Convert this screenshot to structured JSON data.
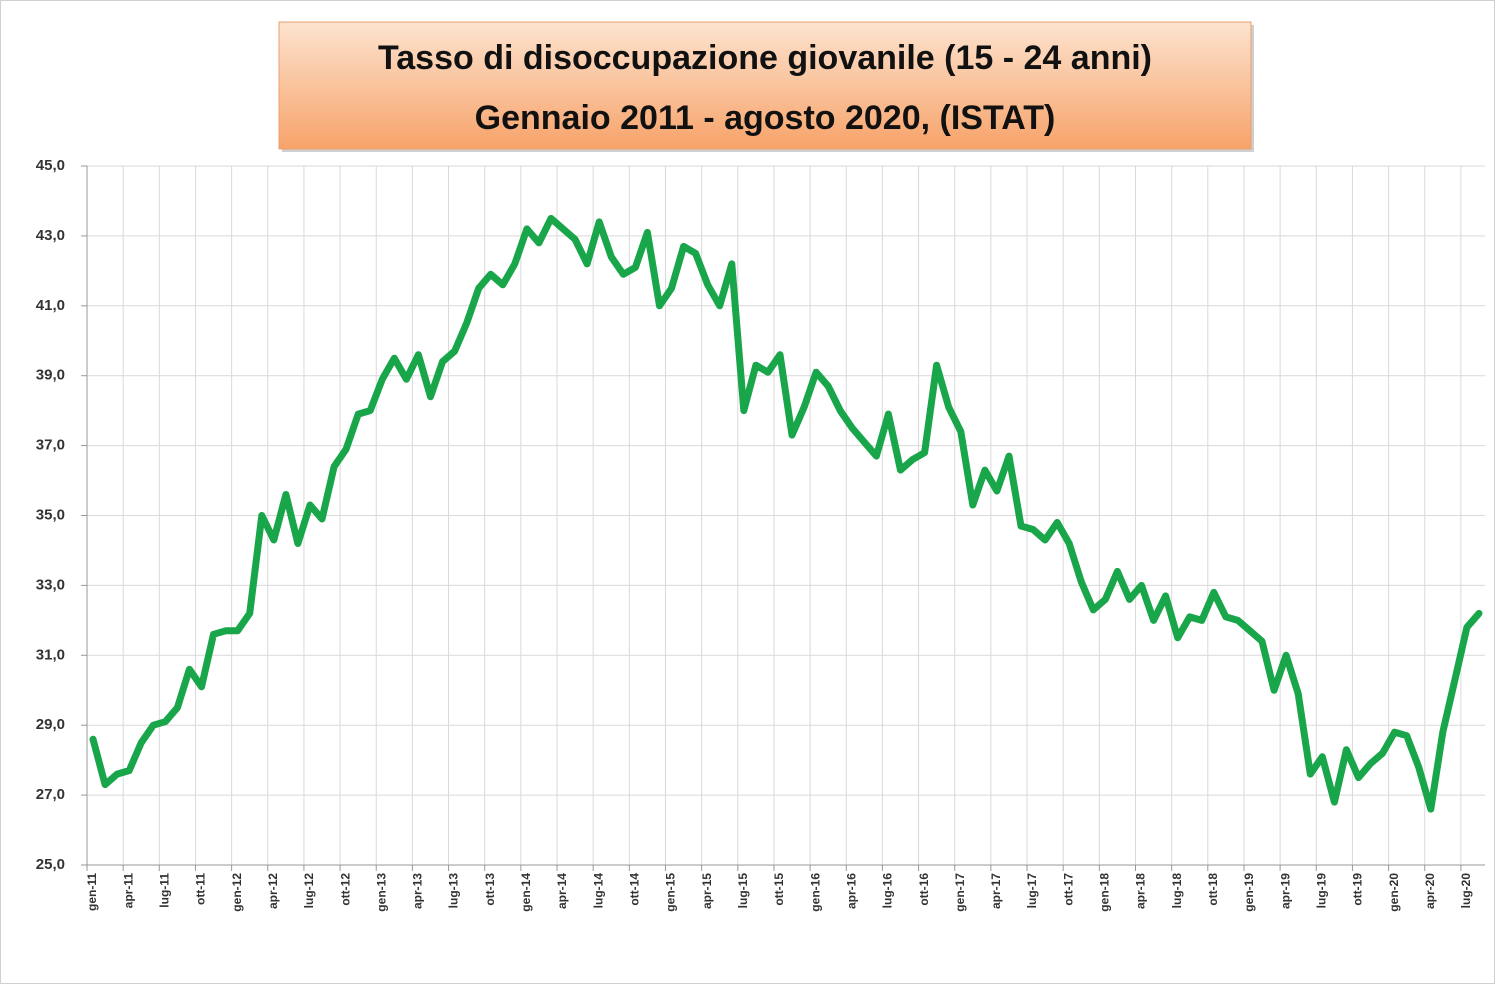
{
  "chart_data": {
    "type": "line",
    "title": "Tasso di disoccupazione giovanile (15 - 24 anni)",
    "subtitle": "Gennaio 2011 - agosto 2020, (ISTAT)",
    "categories": [
      "gen-11",
      null,
      null,
      "apr-11",
      null,
      null,
      "lug-11",
      null,
      null,
      "ott-11",
      null,
      null,
      "gen-12",
      null,
      null,
      "apr-12",
      null,
      null,
      "lug-12",
      null,
      null,
      "ott-12",
      null,
      null,
      "gen-13",
      null,
      null,
      "apr-13",
      null,
      null,
      "lug-13",
      null,
      null,
      "ott-13",
      null,
      null,
      "gen-14",
      null,
      null,
      "apr-14",
      null,
      null,
      "lug-14",
      null,
      null,
      "ott-14",
      null,
      null,
      "gen-15",
      null,
      null,
      "apr-15",
      null,
      null,
      "lug-15",
      null,
      null,
      "ott-15",
      null,
      null,
      "gen-16",
      null,
      null,
      "apr-16",
      null,
      null,
      "lug-16",
      null,
      null,
      "ott-16",
      null,
      null,
      "gen-17",
      null,
      null,
      "apr-17",
      null,
      null,
      "lug-17",
      null,
      null,
      "ott-17",
      null,
      null,
      "gen-18",
      null,
      null,
      "apr-18",
      null,
      null,
      "lug-18",
      null,
      null,
      "ott-18",
      null,
      null,
      "gen-19",
      null,
      null,
      "apr-19",
      null,
      null,
      "lug-19",
      null,
      null,
      "ott-19",
      null,
      null,
      "gen-20",
      null,
      null,
      "apr-20",
      null,
      null,
      "lug-20",
      null
    ],
    "series": [
      {
        "color": "#19a64a",
        "values": [
          28.6,
          27.3,
          27.6,
          27.7,
          28.5,
          29.0,
          29.1,
          29.5,
          30.6,
          30.1,
          31.6,
          31.7,
          31.7,
          32.2,
          35.0,
          34.3,
          35.6,
          34.2,
          35.3,
          34.9,
          36.4,
          36.9,
          37.9,
          38.0,
          38.9,
          39.5,
          38.9,
          39.6,
          38.4,
          39.4,
          39.7,
          40.5,
          41.5,
          41.9,
          41.6,
          42.2,
          43.2,
          42.8,
          43.5,
          43.2,
          42.9,
          42.2,
          43.4,
          42.4,
          41.9,
          42.1,
          43.1,
          41.0,
          41.5,
          42.7,
          42.5,
          41.6,
          41.0,
          42.2,
          38.0,
          39.3,
          39.1,
          39.6,
          37.3,
          38.1,
          39.1,
          38.7,
          38.0,
          37.5,
          37.1,
          36.7,
          37.9,
          36.3,
          36.6,
          36.8,
          39.3,
          38.1,
          37.4,
          35.3,
          36.3,
          35.7,
          36.7,
          34.7,
          34.6,
          34.3,
          34.8,
          34.2,
          33.1,
          32.3,
          32.6,
          33.4,
          32.6,
          33.0,
          32.0,
          32.7,
          31.5,
          32.1,
          32.0,
          32.8,
          32.1,
          32.0,
          31.7,
          31.4,
          30.0,
          31.0,
          29.9,
          27.6,
          28.1,
          26.8,
          28.3,
          27.5,
          27.9,
          28.2,
          28.8,
          28.7,
          27.8,
          26.6,
          28.8,
          30.3,
          31.8,
          32.2
        ]
      }
    ],
    "ylim": [
      25,
      45
    ],
    "yticks": [
      {
        "value": 25,
        "label": "25,0"
      },
      {
        "value": 27,
        "label": "27,0"
      },
      {
        "value": 29,
        "label": "29,0"
      },
      {
        "value": 31,
        "label": "31,0"
      },
      {
        "value": 33,
        "label": "33,0"
      },
      {
        "value": 35,
        "label": "35,0"
      },
      {
        "value": 37,
        "label": "37,0"
      },
      {
        "value": 39,
        "label": "39,0"
      },
      {
        "value": 41,
        "label": "41,0"
      },
      {
        "value": 43,
        "label": "43,0"
      },
      {
        "value": 45,
        "label": "45,0"
      }
    ],
    "grid": true
  }
}
